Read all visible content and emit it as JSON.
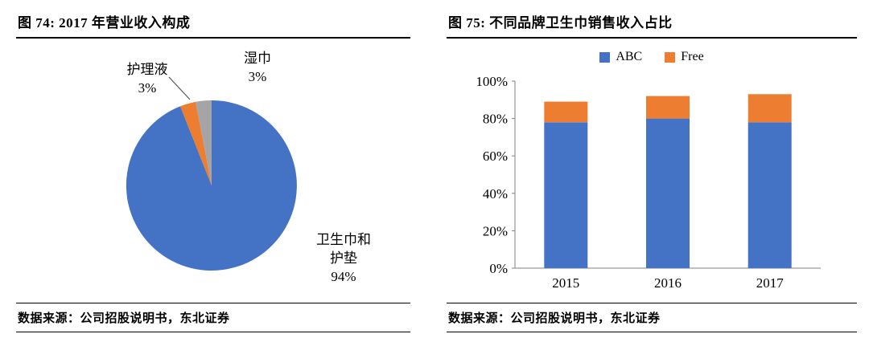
{
  "left": {
    "title": "图 74: 2017 年营业收入构成",
    "source": "数据来源：公司招股说明书，东北证券"
  },
  "right": {
    "title": "图 75: 不同品牌卫生巾销售收入占比",
    "source": "数据来源：公司招股说明书，东北证券"
  },
  "chart_data": [
    {
      "type": "pie",
      "figure": "图 74",
      "title": "2017 年营业收入构成",
      "start_angle": "12-oclock",
      "direction": "clockwise",
      "slices": [
        {
          "label": "卫生巾和护垫",
          "value": 94,
          "pct_label": "94%",
          "color": "#4472C4",
          "label_lines": [
            "卫生巾和",
            "护垫",
            "94%"
          ]
        },
        {
          "label": "护理液",
          "value": 3,
          "pct_label": "3%",
          "color": "#ED7D31",
          "label_lines": [
            "护理液",
            "3%"
          ]
        },
        {
          "label": "湿巾",
          "value": 3,
          "pct_label": "3%",
          "color": "#A5A5A5",
          "label_lines": [
            "湿巾",
            "3%"
          ]
        }
      ]
    },
    {
      "type": "bar",
      "stacked": true,
      "figure": "图 75",
      "title": "不同品牌卫生巾销售收入占比",
      "categories": [
        "2015",
        "2016",
        "2017"
      ],
      "series": [
        {
          "name": "ABC",
          "color": "#4472C4",
          "values": [
            78,
            80,
            78
          ]
        },
        {
          "name": "Free",
          "color": "#ED7D31",
          "values": [
            11,
            12,
            15
          ]
        }
      ],
      "ylim": [
        0,
        100
      ],
      "yticks": [
        0,
        20,
        40,
        60,
        80,
        100
      ],
      "ytick_labels": [
        "0%",
        "20%",
        "40%",
        "60%",
        "80%",
        "100%"
      ],
      "legend_position": "top",
      "grid": false,
      "axis_color": "#808080"
    }
  ]
}
